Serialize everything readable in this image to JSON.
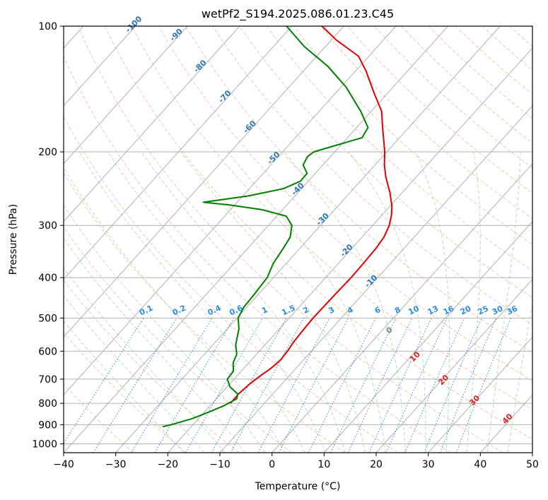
{
  "chart_data": {
    "type": "line",
    "diagram": "skew-T log-P",
    "title": "wetPf2_S194.2025.086.01.23.C45",
    "xlabel": "Temperature (°C)",
    "ylabel": "Pressure (hPa)",
    "xlim": [
      -40,
      50
    ],
    "ylim": [
      1050,
      100
    ],
    "y_scale": "log",
    "grid": true,
    "x_ticks": [
      "−40",
      "−30",
      "−20",
      "−10",
      "0",
      "10",
      "20",
      "30",
      "40",
      "50"
    ],
    "x_tick_values": [
      -40,
      -30,
      -20,
      -10,
      0,
      10,
      20,
      30,
      40,
      50
    ],
    "y_ticks": [
      "100",
      "200",
      "300",
      "400",
      "500",
      "600",
      "700",
      "800",
      "900",
      "1000"
    ],
    "y_tick_values": [
      100,
      200,
      300,
      400,
      500,
      600,
      700,
      800,
      900,
      1000
    ],
    "isotherm_labels": [
      "-100",
      "-90",
      "-80",
      "-70",
      "-60",
      "-50",
      "-40",
      "-30",
      "-20",
      "-10"
    ],
    "isotherm_label_values": [
      -100,
      -90,
      -80,
      -70,
      -60,
      -50,
      -40,
      -30,
      -20,
      -10
    ],
    "mixing_ratio_labels": [
      "0.1",
      "0.2",
      "0.4",
      "0.6",
      "1",
      "1.5",
      "2",
      "3",
      "4",
      "6",
      "8",
      "10",
      "13",
      "16",
      "20",
      "25",
      "30",
      "36"
    ],
    "mixing_ratio_values": [
      0.1,
      0.2,
      0.4,
      0.6,
      1,
      1.5,
      2,
      3,
      4,
      6,
      8,
      10,
      13,
      16,
      20,
      25,
      30,
      36
    ],
    "moist_adiabat_labels": [
      "0",
      "10",
      "20",
      "30",
      "40"
    ],
    "moist_adiabat_values": [
      0,
      10,
      20,
      30,
      40
    ],
    "series": [
      {
        "color": "#e00000",
        "points": [
          [
            -16.5,
            800
          ],
          [
            -16.6,
            760
          ],
          [
            -16.2,
            720
          ],
          [
            -15.6,
            690
          ],
          [
            -14.8,
            660
          ],
          [
            -14.4,
            630
          ],
          [
            -14.6,
            600
          ],
          [
            -15,
            570
          ],
          [
            -15.2,
            540
          ],
          [
            -15.4,
            500
          ],
          [
            -15.3,
            450
          ],
          [
            -15.1,
            400
          ],
          [
            -15.2,
            370
          ],
          [
            -15.4,
            340
          ],
          [
            -15.8,
            320
          ],
          [
            -16.8,
            300
          ],
          [
            -18,
            285
          ],
          [
            -19.6,
            270
          ],
          [
            -22.4,
            250
          ],
          [
            -25.8,
            230
          ],
          [
            -28.2,
            215
          ],
          [
            -30.4,
            200
          ],
          [
            -35,
            175
          ],
          [
            -38,
            160
          ],
          [
            -42.5,
            145
          ],
          [
            -48,
            128
          ],
          [
            -52,
            118
          ],
          [
            -59,
            108
          ],
          [
            -64.2,
            100
          ]
        ]
      },
      {
        "color": "#008000",
        "points": [
          [
            -25.5,
            910
          ],
          [
            -24.2,
            900
          ],
          [
            -21.2,
            870
          ],
          [
            -19.2,
            840
          ],
          [
            -17.3,
            810
          ],
          [
            -16.1,
            780
          ],
          [
            -16.7,
            760
          ],
          [
            -19.5,
            730
          ],
          [
            -21.3,
            700
          ],
          [
            -21.5,
            670
          ],
          [
            -23,
            640
          ],
          [
            -23.8,
            610
          ],
          [
            -25.6,
            580
          ],
          [
            -27.8,
            530
          ],
          [
            -29.8,
            500
          ],
          [
            -30.6,
            470
          ],
          [
            -30.8,
            440
          ],
          [
            -31.2,
            400
          ],
          [
            -32.5,
            370
          ],
          [
            -33.2,
            340
          ],
          [
            -33.8,
            320
          ],
          [
            -35.5,
            300
          ],
          [
            -38.2,
            285
          ],
          [
            -44,
            275
          ],
          [
            -51,
            268
          ],
          [
            -56.5,
            264
          ],
          [
            -49,
            255
          ],
          [
            -43.5,
            245
          ],
          [
            -41.5,
            235
          ],
          [
            -41.6,
            225
          ],
          [
            -43.8,
            215
          ],
          [
            -44.4,
            205
          ],
          [
            -44,
            200
          ],
          [
            -41.8,
            195
          ],
          [
            -37.2,
            185
          ],
          [
            -37.8,
            175
          ],
          [
            -42,
            160
          ],
          [
            -49,
            140
          ],
          [
            -56,
            125
          ],
          [
            -64,
            112
          ],
          [
            -71,
            100
          ]
        ]
      }
    ]
  }
}
